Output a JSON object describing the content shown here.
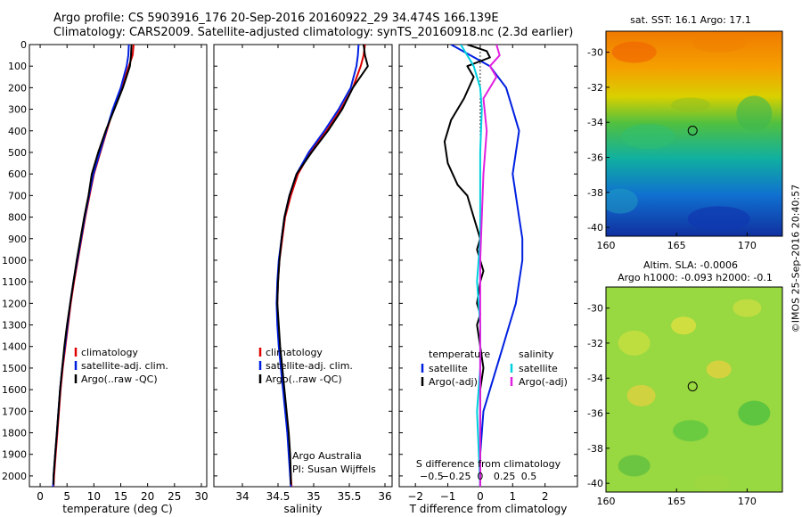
{
  "header": {
    "line1": "Argo profile: CS 5903916_176 20-Sep-2016 20160922_29 34.474S 166.139E",
    "line2": "Climatology: CARS2009. Satellite-adjusted climatology: synTS_20160918.nc (2.3d earlier)"
  },
  "side_stamp": "©IMOS 25-Sep-2016 20:40:57",
  "colors": {
    "climatology": "#e00000",
    "satellite": "#0020e0",
    "argo": "#000000",
    "salinity_sat": "#00d0e0",
    "salinity_argo": "#e020e0"
  },
  "chart_data": [
    {
      "type": "line",
      "xlabel": "temperature (deg C)",
      "ylabel": "",
      "xlim": [
        -2,
        31
      ],
      "ylim": [
        2050,
        0
      ],
      "xticks": [
        0,
        5,
        10,
        15,
        20,
        25,
        30
      ],
      "yticks": [
        0,
        100,
        200,
        300,
        400,
        500,
        600,
        700,
        800,
        900,
        1000,
        1100,
        1200,
        1300,
        1400,
        1500,
        1600,
        1700,
        1800,
        1900,
        2000
      ],
      "legend": {
        "position": "lower-middle",
        "entries": [
          "climatology",
          "satellite-adj. clim.",
          "Argo(..raw -QC)"
        ]
      },
      "series": [
        {
          "name": "climatology",
          "color": "#e00000",
          "points": [
            [
              17.4,
              0
            ],
            [
              17.2,
              50
            ],
            [
              16.5,
              100
            ],
            [
              15.2,
              200
            ],
            [
              13.6,
              300
            ],
            [
              12.4,
              400
            ],
            [
              11.2,
              500
            ],
            [
              10.0,
              600
            ],
            [
              9.2,
              700
            ],
            [
              8.4,
              800
            ],
            [
              7.7,
              900
            ],
            [
              7.0,
              1000
            ],
            [
              6.3,
              1100
            ],
            [
              5.7,
              1200
            ],
            [
              5.2,
              1300
            ],
            [
              4.7,
              1400
            ],
            [
              4.2,
              1500
            ],
            [
              3.8,
              1600
            ],
            [
              3.5,
              1700
            ],
            [
              3.2,
              1800
            ],
            [
              2.9,
              1900
            ],
            [
              2.6,
              2000
            ],
            [
              2.5,
              2050
            ]
          ]
        },
        {
          "name": "satellite-adj. clim.",
          "color": "#0020e0",
          "points": [
            [
              16.5,
              0
            ],
            [
              16.4,
              50
            ],
            [
              16.1,
              100
            ],
            [
              15.0,
              200
            ],
            [
              13.5,
              300
            ],
            [
              12.3,
              400
            ],
            [
              11.1,
              500
            ],
            [
              9.9,
              600
            ],
            [
              9.1,
              700
            ],
            [
              8.3,
              800
            ],
            [
              7.6,
              900
            ],
            [
              6.9,
              1000
            ],
            [
              6.2,
              1100
            ],
            [
              5.6,
              1200
            ],
            [
              5.1,
              1300
            ],
            [
              4.6,
              1400
            ],
            [
              4.1,
              1500
            ],
            [
              3.7,
              1600
            ],
            [
              3.4,
              1700
            ],
            [
              3.1,
              1800
            ],
            [
              2.8,
              1900
            ],
            [
              2.5,
              2000
            ],
            [
              2.4,
              2050
            ]
          ]
        },
        {
          "name": "Argo(..raw -QC)",
          "color": "#000000",
          "points": [
            [
              17.0,
              0
            ],
            [
              16.9,
              50
            ],
            [
              16.7,
              100
            ],
            [
              15.4,
              200
            ],
            [
              13.8,
              300
            ],
            [
              12.2,
              400
            ],
            [
              10.8,
              500
            ],
            [
              9.6,
              600
            ],
            [
              9.0,
              700
            ],
            [
              8.2,
              800
            ],
            [
              7.5,
              900
            ],
            [
              6.8,
              1000
            ],
            [
              6.2,
              1100
            ],
            [
              5.6,
              1200
            ],
            [
              5.0,
              1300
            ],
            [
              4.5,
              1400
            ],
            [
              4.1,
              1500
            ],
            [
              3.7,
              1600
            ],
            [
              3.4,
              1700
            ],
            [
              3.1,
              1800
            ],
            [
              2.8,
              1900
            ],
            [
              2.5,
              2000
            ],
            [
              2.5,
              2040
            ]
          ]
        }
      ]
    },
    {
      "type": "line",
      "xlabel": "salinity",
      "ylabel": "",
      "xlim": [
        33.6,
        36.1
      ],
      "ylim": [
        2050,
        0
      ],
      "xticks": [
        34,
        34.5,
        35,
        35.5,
        36
      ],
      "legend": {
        "position": "lower-middle",
        "entries": [
          "climatology",
          "satellite-adj. clim.",
          "Argo(..raw -QC)"
        ]
      },
      "annotation": [
        "Argo Australia",
        "PI: Susan Wijffels"
      ],
      "series": [
        {
          "name": "climatology",
          "color": "#e00000",
          "points": [
            [
              35.72,
              0
            ],
            [
              35.7,
              50
            ],
            [
              35.66,
              100
            ],
            [
              35.55,
              200
            ],
            [
              35.38,
              300
            ],
            [
              35.18,
              400
            ],
            [
              34.95,
              500
            ],
            [
              34.78,
              600
            ],
            [
              34.68,
              700
            ],
            [
              34.6,
              800
            ],
            [
              34.56,
              900
            ],
            [
              34.52,
              1000
            ],
            [
              34.5,
              1100
            ],
            [
              34.49,
              1200
            ],
            [
              34.5,
              1300
            ],
            [
              34.52,
              1400
            ],
            [
              34.55,
              1500
            ],
            [
              34.58,
              1600
            ],
            [
              34.61,
              1700
            ],
            [
              34.64,
              1800
            ],
            [
              34.66,
              1900
            ],
            [
              34.68,
              2000
            ],
            [
              34.69,
              2050
            ]
          ]
        },
        {
          "name": "satellite-adj. clim.",
          "color": "#0020e0",
          "points": [
            [
              35.63,
              0
            ],
            [
              35.62,
              50
            ],
            [
              35.6,
              100
            ],
            [
              35.52,
              200
            ],
            [
              35.35,
              300
            ],
            [
              35.15,
              400
            ],
            [
              34.93,
              500
            ],
            [
              34.76,
              600
            ],
            [
              34.66,
              700
            ],
            [
              34.59,
              800
            ],
            [
              34.55,
              900
            ],
            [
              34.51,
              1000
            ],
            [
              34.49,
              1100
            ],
            [
              34.48,
              1200
            ],
            [
              34.49,
              1300
            ],
            [
              34.51,
              1400
            ],
            [
              34.54,
              1500
            ],
            [
              34.57,
              1600
            ],
            [
              34.6,
              1700
            ],
            [
              34.63,
              1800
            ],
            [
              34.65,
              1900
            ],
            [
              34.67,
              2000
            ],
            [
              34.68,
              2050
            ]
          ]
        },
        {
          "name": "Argo(..raw -QC)",
          "color": "#000000",
          "points": [
            [
              35.7,
              0
            ],
            [
              35.72,
              50
            ],
            [
              35.76,
              100
            ],
            [
              35.55,
              200
            ],
            [
              35.4,
              300
            ],
            [
              35.2,
              400
            ],
            [
              34.97,
              500
            ],
            [
              34.76,
              600
            ],
            [
              34.66,
              700
            ],
            [
              34.59,
              800
            ],
            [
              34.55,
              900
            ],
            [
              34.52,
              1000
            ],
            [
              34.5,
              1100
            ],
            [
              34.49,
              1200
            ],
            [
              34.51,
              1300
            ],
            [
              34.53,
              1400
            ],
            [
              34.56,
              1500
            ],
            [
              34.59,
              1600
            ],
            [
              34.62,
              1700
            ],
            [
              34.65,
              1800
            ],
            [
              34.67,
              1900
            ],
            [
              34.68,
              2000
            ],
            [
              34.68,
              2040
            ]
          ]
        }
      ]
    },
    {
      "type": "line",
      "xlabel": "T difference from climatology",
      "title_bottom": "S difference from climatology",
      "xlim": [
        -2.5,
        3.0
      ],
      "ylim": [
        2050,
        0
      ],
      "xticks": [
        -2,
        -1,
        0,
        1,
        2
      ],
      "xtick_labels": [
        "−2",
        "−1",
        "0",
        "1",
        "2"
      ],
      "sticks_labels": [
        "−0.5",
        "−0.25",
        "0",
        "0.25",
        "0.5"
      ],
      "sticks_x": [
        -1.5,
        -0.75,
        0,
        0.75,
        1.5
      ],
      "legend": {
        "position": "lower-middle",
        "left_title": "temperature",
        "right_title": "salinity",
        "left_entries": [
          "satellite",
          "Argo(-adj)"
        ],
        "right_entries": [
          "satellite",
          "Argo(-adj)"
        ]
      },
      "series": [
        {
          "name": "T satellite",
          "color": "#0020e0",
          "points": [
            [
              -0.9,
              0
            ],
            [
              -0.3,
              50
            ],
            [
              0.3,
              100
            ],
            [
              0.8,
              200
            ],
            [
              1.0,
              300
            ],
            [
              1.2,
              400
            ],
            [
              1.1,
              500
            ],
            [
              1.0,
              600
            ],
            [
              1.1,
              700
            ],
            [
              1.2,
              800
            ],
            [
              1.3,
              900
            ],
            [
              1.3,
              1000
            ],
            [
              1.2,
              1100
            ],
            [
              1.1,
              1200
            ],
            [
              0.9,
              1300
            ],
            [
              0.7,
              1400
            ],
            [
              0.5,
              1500
            ],
            [
              0.3,
              1600
            ],
            [
              0.1,
              1700
            ],
            [
              0.05,
              1800
            ],
            [
              0,
              1900
            ],
            [
              0,
              2050
            ]
          ]
        },
        {
          "name": "T Argo(-adj)",
          "color": "#000000",
          "points": [
            [
              -0.4,
              0
            ],
            [
              0.2,
              30
            ],
            [
              0.3,
              60
            ],
            [
              -0.4,
              100
            ],
            [
              -0.2,
              150
            ],
            [
              -0.5,
              250
            ],
            [
              -0.9,
              350
            ],
            [
              -1.1,
              450
            ],
            [
              -1.0,
              550
            ],
            [
              -0.7,
              650
            ],
            [
              -0.4,
              700
            ],
            [
              -0.2,
              800
            ],
            [
              0,
              900
            ],
            [
              -0.1,
              950
            ],
            [
              0,
              1000
            ],
            [
              0.1,
              1050
            ],
            [
              0,
              1100
            ],
            [
              -0.1,
              1200
            ],
            [
              0,
              1250
            ],
            [
              -0.1,
              1300
            ],
            [
              0,
              1400
            ],
            [
              0.1,
              1500
            ],
            [
              0,
              1600
            ],
            [
              0,
              1700
            ],
            [
              0,
              2050
            ]
          ]
        },
        {
          "name": "S satellite",
          "color": "#00d0e0",
          "points": [
            [
              -0.6,
              0
            ],
            [
              -0.2,
              100
            ],
            [
              0,
              200
            ],
            [
              0.05,
              300
            ],
            [
              0,
              500
            ],
            [
              0,
              700
            ],
            [
              0,
              900
            ],
            [
              -0.1,
              1100
            ],
            [
              0,
              1300
            ],
            [
              0,
              1500
            ],
            [
              -0.1,
              1700
            ],
            [
              0,
              2050
            ]
          ]
        },
        {
          "name": "S Argo(-adj)",
          "color": "#e020e0",
          "points": [
            [
              0.5,
              0
            ],
            [
              0.6,
              50
            ],
            [
              0.3,
              100
            ],
            [
              0.5,
              150
            ],
            [
              0.1,
              250
            ],
            [
              0.2,
              400
            ],
            [
              0.1,
              600
            ],
            [
              0.05,
              800
            ],
            [
              0,
              1000
            ],
            [
              0,
              2050
            ]
          ]
        }
      ]
    }
  ],
  "map_sst": {
    "title": "sat. SST: 16.1 Argo: 17.1",
    "xlim": [
      160,
      172.5
    ],
    "ylim": [
      -40.5,
      -28.8
    ],
    "xticks": [
      160,
      165,
      170
    ],
    "yticks": [
      -30,
      -32,
      -34,
      -36,
      -38,
      -40
    ],
    "float": [
      166.139,
      -34.474
    ]
  },
  "map_sla": {
    "title_line1": "Altim. SLA: -0.0006",
    "title_line2": "Argo h1000: -0.093 h2000: -0.1",
    "xlim": [
      160,
      172.5
    ],
    "ylim": [
      -40.5,
      -28.8
    ],
    "xticks": [
      160,
      165,
      170
    ],
    "yticks": [
      -30,
      -32,
      -34,
      -36,
      -38,
      -40
    ],
    "float": [
      166.139,
      -34.474
    ]
  }
}
